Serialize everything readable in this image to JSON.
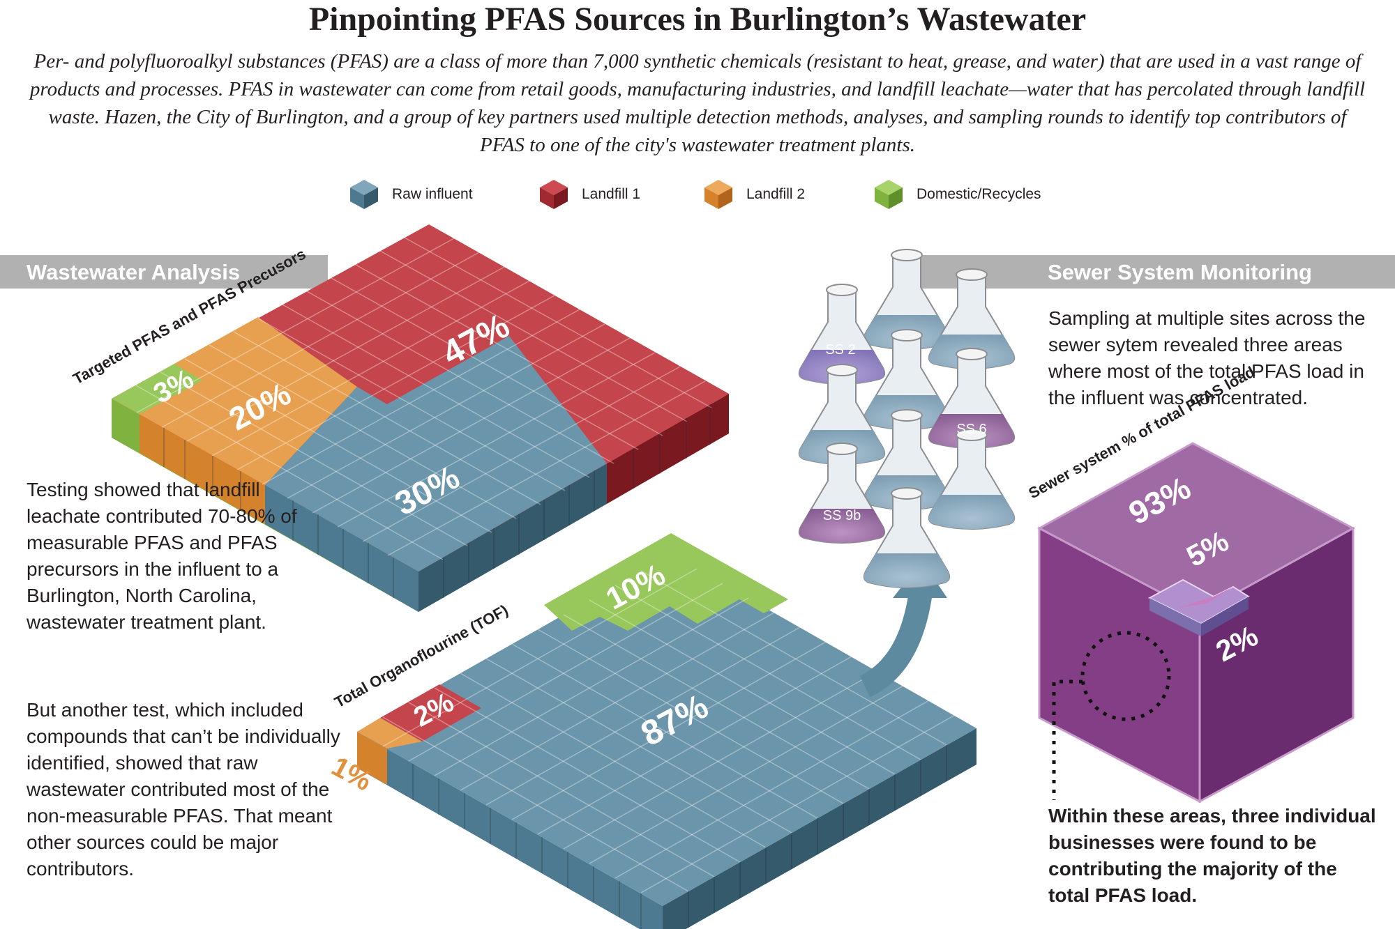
{
  "header": {
    "title": "Pinpointing PFAS Sources in Burlington’s Wastewater",
    "intro": "Per- and polyfluoroalkyl substances (PFAS) are a class of more than 7,000 synthetic chemicals (resistant to heat, grease, and water) that are used in a vast range of products and processes. PFAS in wastewater can come from retail goods, manufacturing industries, and landfill leachate—water that has percolated through landfill waste. Hazen, the City of Burlington, and a group of key partners used multiple detection methods, analyses, and sampling rounds to identify top contributors of PFAS to one of the city's wastewater treatment plants."
  },
  "legend": [
    {
      "label": "Raw influent",
      "color": "#5e8aa0"
    },
    {
      "label": "Landfill 1",
      "color": "#b3383f"
    },
    {
      "label": "Landfill 2",
      "color": "#e0913d"
    },
    {
      "label": "Domestic/Recycles",
      "color": "#8fc14c"
    }
  ],
  "sections": {
    "wastewater": "Wastewater Analysis",
    "sewer": "Sewer System Monitoring"
  },
  "grid_targeted": {
    "label": "Targeted PFAS and PFAS Precusors",
    "values": {
      "landfill1": "47%",
      "landfill2": "20%",
      "domestic": "3%",
      "raw": "30%"
    }
  },
  "grid_tof": {
    "label": "Total Organoflourine (TOF)",
    "values": {
      "raw": "87%",
      "domestic": "10%",
      "landfill1": "2%",
      "landfill2": "1%"
    }
  },
  "flasks": [
    "SS 2",
    "SS 6",
    "SS 9b"
  ],
  "cube": {
    "label": "Sewer system % of total PFAS load",
    "values": {
      "top": "93%",
      "mid": "5%",
      "small": "2%"
    }
  },
  "text": {
    "left_para_1": "Testing showed that landfill leachate contributed 70-80% of measurable PFAS and PFAS precursors in the influent to a Burlington, North Carolina, wastewater treatment plant.",
    "left_para_2": "But another test, which included compounds that can’t be individually identified, showed that raw wastewater contributed most of the non-measurable PFAS. That meant other sources could be major contributors.",
    "sewer_para": "Sampling at multiple sites across the sewer sytem revealed three areas where most of the total PFAS load in the influent was concentrated.",
    "businesses": "Within these areas, three individual businesses were found to be contributing the majority of the total PFAS load."
  }
}
